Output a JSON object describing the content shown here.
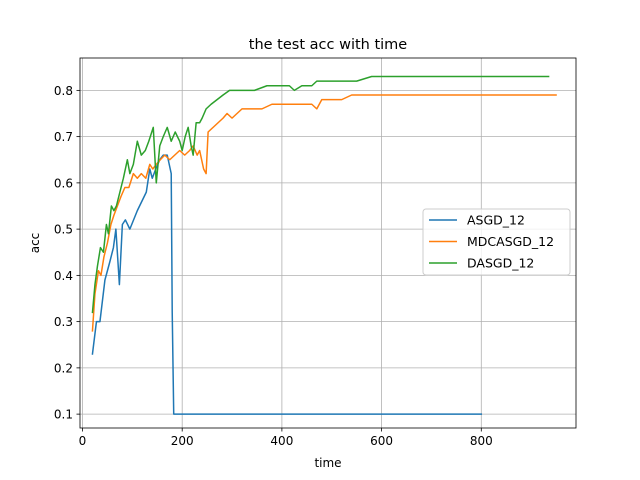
{
  "chart_data": {
    "type": "line",
    "title": "the test acc with time",
    "xlabel": "time",
    "ylabel": "acc",
    "xlim": [
      -5,
      990
    ],
    "ylim": [
      0.07,
      0.87
    ],
    "xticks": [
      0,
      200,
      400,
      600,
      800
    ],
    "yticks": [
      0.1,
      0.2,
      0.3,
      0.4,
      0.5,
      0.6,
      0.7,
      0.8
    ],
    "grid": true,
    "legend_position": "center-right",
    "series": [
      {
        "name": "ASGD_12",
        "color": "#1f77b4",
        "x": [
          20,
          28,
          35,
          45,
          55,
          62,
          67,
          74,
          80,
          86,
          95,
          110,
          128,
          135,
          140,
          147,
          155,
          162,
          170,
          178,
          180,
          183,
          200,
          400,
          600,
          800
        ],
        "y": [
          0.23,
          0.3,
          0.3,
          0.39,
          0.43,
          0.46,
          0.5,
          0.38,
          0.51,
          0.52,
          0.5,
          0.54,
          0.58,
          0.63,
          0.61,
          0.63,
          0.65,
          0.66,
          0.66,
          0.62,
          0.32,
          0.1,
          0.1,
          0.1,
          0.1,
          0.1
        ]
      },
      {
        "name": "MDCASGD_12",
        "color": "#ff7f0e",
        "x": [
          20,
          25,
          32,
          37,
          43,
          50,
          57,
          63,
          70,
          77,
          85,
          93,
          102,
          110,
          118,
          127,
          135,
          141,
          148,
          156,
          165,
          175,
          185,
          195,
          205,
          215,
          222,
          230,
          235,
          243,
          248,
          252,
          262,
          272,
          282,
          290,
          300,
          310,
          320,
          340,
          360,
          380,
          400,
          420,
          440,
          460,
          470,
          480,
          500,
          520,
          540,
          560,
          600,
          650,
          700,
          750,
          800,
          850,
          900,
          950
        ],
        "y": [
          0.28,
          0.36,
          0.41,
          0.4,
          0.44,
          0.47,
          0.51,
          0.53,
          0.55,
          0.57,
          0.59,
          0.59,
          0.62,
          0.61,
          0.62,
          0.61,
          0.64,
          0.63,
          0.64,
          0.65,
          0.66,
          0.65,
          0.66,
          0.67,
          0.66,
          0.67,
          0.68,
          0.66,
          0.67,
          0.63,
          0.62,
          0.71,
          0.72,
          0.73,
          0.74,
          0.75,
          0.74,
          0.75,
          0.76,
          0.76,
          0.76,
          0.77,
          0.77,
          0.77,
          0.77,
          0.77,
          0.76,
          0.78,
          0.78,
          0.78,
          0.79,
          0.79,
          0.79,
          0.79,
          0.79,
          0.79,
          0.79,
          0.79,
          0.79,
          0.79
        ]
      },
      {
        "name": "DASGD_12",
        "color": "#2ca02c",
        "x": [
          20,
          25,
          30,
          36,
          42,
          48,
          52,
          58,
          63,
          68,
          75,
          82,
          90,
          95,
          102,
          110,
          118,
          126,
          133,
          142,
          148,
          155,
          162,
          170,
          178,
          186,
          195,
          200,
          206,
          212,
          218,
          222,
          228,
          235,
          240,
          248,
          258,
          270,
          282,
          295,
          310,
          325,
          345,
          370,
          395,
          415,
          425,
          440,
          450,
          460,
          470,
          480,
          500,
          520,
          550,
          580,
          620,
          660,
          700,
          750,
          800,
          850,
          900,
          935
        ],
        "y": [
          0.32,
          0.38,
          0.42,
          0.46,
          0.45,
          0.51,
          0.49,
          0.55,
          0.54,
          0.55,
          0.58,
          0.61,
          0.65,
          0.62,
          0.64,
          0.69,
          0.66,
          0.67,
          0.69,
          0.72,
          0.6,
          0.68,
          0.7,
          0.72,
          0.69,
          0.71,
          0.69,
          0.67,
          0.7,
          0.72,
          0.68,
          0.66,
          0.73,
          0.73,
          0.74,
          0.76,
          0.77,
          0.78,
          0.79,
          0.8,
          0.8,
          0.8,
          0.8,
          0.81,
          0.81,
          0.81,
          0.8,
          0.81,
          0.81,
          0.81,
          0.82,
          0.82,
          0.82,
          0.82,
          0.82,
          0.83,
          0.83,
          0.83,
          0.83,
          0.83,
          0.83,
          0.83,
          0.83,
          0.83
        ]
      }
    ]
  }
}
